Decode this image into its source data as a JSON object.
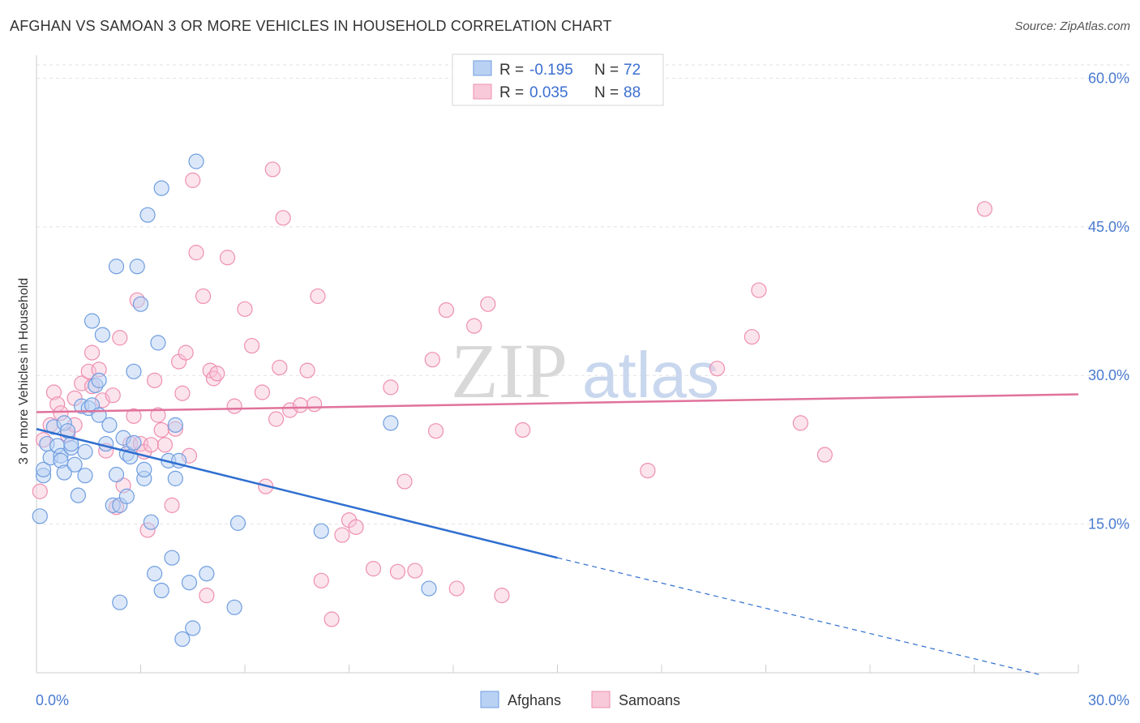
{
  "title": "AFGHAN VS SAMOAN 3 OR MORE VEHICLES IN HOUSEHOLD CORRELATION CHART",
  "source": "Source: ZipAtlas.com",
  "watermark": {
    "zip": "ZIP",
    "atlas": "atlas"
  },
  "legend": {
    "rows": [
      {
        "r_label": "R =",
        "r_value": "-0.195",
        "n_label": "N =",
        "n_value": "72"
      },
      {
        "r_label": "R =",
        "r_value": "0.035",
        "n_label": "N =",
        "n_value": "88"
      }
    ]
  },
  "bottom_legend": [
    "Afghans",
    "Samoans"
  ],
  "chart_data": {
    "type": "scatter",
    "title": "AFGHAN VS SAMOAN 3 OR MORE VEHICLES IN HOUSEHOLD CORRELATION CHART",
    "xlabel": "",
    "ylabel": "3 or more Vehicles in Household",
    "xlim": [
      0,
      30
    ],
    "ylim": [
      0,
      62
    ],
    "x_tick_labels": [
      "0.0%",
      "30.0%"
    ],
    "y_ticks": [
      15,
      30,
      45,
      60
    ],
    "y_tick_labels": [
      "15.0%",
      "30.0%",
      "45.0%",
      "60.0%"
    ],
    "grid": true,
    "colors": {
      "afghans": "#6f9de0",
      "samoans": "#ee8fb0",
      "afghan_line": "#2f6fd0",
      "samoan_line": "#e0729b"
    },
    "series": [
      {
        "name": "Afghans",
        "r": -0.195,
        "n": 72,
        "trend": {
          "x0": 0,
          "y0": 24.6,
          "x1": 15,
          "y1": 11.6,
          "dashed_to_x": 28.9,
          "dashed_to_y": -0.2
        },
        "points": [
          [
            0.1,
            15.8
          ],
          [
            0.2,
            19.9
          ],
          [
            0.2,
            20.5
          ],
          [
            0.3,
            23.1
          ],
          [
            0.4,
            21.7
          ],
          [
            0.5,
            24.8
          ],
          [
            0.6,
            22.9
          ],
          [
            0.7,
            21.9
          ],
          [
            0.7,
            21.4
          ],
          [
            0.8,
            20.2
          ],
          [
            0.8,
            25.2
          ],
          [
            0.9,
            24.4
          ],
          [
            1.0,
            22.7
          ],
          [
            1.0,
            23.1
          ],
          [
            1.1,
            21.0
          ],
          [
            1.2,
            17.9
          ],
          [
            1.3,
            26.9
          ],
          [
            1.4,
            22.3
          ],
          [
            1.4,
            19.9
          ],
          [
            1.5,
            26.7
          ],
          [
            1.6,
            35.5
          ],
          [
            1.6,
            27.0
          ],
          [
            1.7,
            29.0
          ],
          [
            1.8,
            29.5
          ],
          [
            1.8,
            26.0
          ],
          [
            1.9,
            34.1
          ],
          [
            2.0,
            23.1
          ],
          [
            2.1,
            25.0
          ],
          [
            2.2,
            16.9
          ],
          [
            2.3,
            41.0
          ],
          [
            2.3,
            20.0
          ],
          [
            2.4,
            16.9
          ],
          [
            2.4,
            7.1
          ],
          [
            2.5,
            23.7
          ],
          [
            2.6,
            17.8
          ],
          [
            2.6,
            22.1
          ],
          [
            2.7,
            21.8
          ],
          [
            2.8,
            23.2
          ],
          [
            2.8,
            30.4
          ],
          [
            2.9,
            41.0
          ],
          [
            3.0,
            37.2
          ],
          [
            3.1,
            19.6
          ],
          [
            3.1,
            20.5
          ],
          [
            3.2,
            46.2
          ],
          [
            3.3,
            15.2
          ],
          [
            3.4,
            10.0
          ],
          [
            3.5,
            33.3
          ],
          [
            3.6,
            48.9
          ],
          [
            3.6,
            8.3
          ],
          [
            3.8,
            21.4
          ],
          [
            3.9,
            11.6
          ],
          [
            4.0,
            19.6
          ],
          [
            4.0,
            25.0
          ],
          [
            4.1,
            21.4
          ],
          [
            4.2,
            3.4
          ],
          [
            4.4,
            9.1
          ],
          [
            4.5,
            4.5
          ],
          [
            4.6,
            51.6
          ],
          [
            4.9,
            10.0
          ],
          [
            5.7,
            6.6
          ],
          [
            5.8,
            15.1
          ],
          [
            8.2,
            14.3
          ],
          [
            10.2,
            25.2
          ],
          [
            11.3,
            8.5
          ]
        ]
      },
      {
        "name": "Samoans",
        "r": 0.035,
        "n": 88,
        "trend": {
          "x0": 0,
          "y0": 26.3,
          "x1": 30,
          "y1": 28.1
        },
        "points": [
          [
            0.1,
            18.3
          ],
          [
            0.2,
            23.5
          ],
          [
            0.4,
            25.0
          ],
          [
            0.5,
            28.3
          ],
          [
            0.6,
            27.1
          ],
          [
            0.7,
            26.2
          ],
          [
            0.9,
            24.0
          ],
          [
            1.1,
            25.0
          ],
          [
            1.1,
            27.7
          ],
          [
            1.3,
            29.2
          ],
          [
            1.5,
            30.4
          ],
          [
            1.6,
            32.3
          ],
          [
            1.6,
            28.9
          ],
          [
            1.8,
            30.6
          ],
          [
            1.9,
            27.5
          ],
          [
            2.0,
            22.4
          ],
          [
            2.2,
            28.0
          ],
          [
            2.3,
            16.7
          ],
          [
            2.4,
            33.8
          ],
          [
            2.5,
            18.9
          ],
          [
            2.7,
            23.1
          ],
          [
            2.8,
            25.9
          ],
          [
            2.9,
            37.6
          ],
          [
            3.0,
            23.1
          ],
          [
            3.1,
            22.3
          ],
          [
            3.2,
            14.4
          ],
          [
            3.3,
            23.0
          ],
          [
            3.4,
            29.5
          ],
          [
            3.5,
            26.0
          ],
          [
            3.6,
            24.5
          ],
          [
            3.7,
            23.0
          ],
          [
            3.9,
            16.9
          ],
          [
            4.0,
            24.6
          ],
          [
            4.1,
            31.4
          ],
          [
            4.2,
            28.2
          ],
          [
            4.3,
            32.3
          ],
          [
            4.4,
            21.9
          ],
          [
            4.5,
            49.7
          ],
          [
            4.6,
            42.4
          ],
          [
            4.8,
            38.0
          ],
          [
            4.9,
            7.8
          ],
          [
            5.0,
            30.5
          ],
          [
            5.1,
            29.7
          ],
          [
            5.2,
            30.2
          ],
          [
            5.5,
            41.9
          ],
          [
            5.7,
            26.9
          ],
          [
            6.0,
            36.7
          ],
          [
            6.2,
            33.0
          ],
          [
            6.5,
            28.3
          ],
          [
            6.6,
            18.8
          ],
          [
            6.8,
            50.8
          ],
          [
            6.9,
            25.6
          ],
          [
            7.0,
            30.8
          ],
          [
            7.1,
            45.9
          ],
          [
            7.3,
            26.5
          ],
          [
            7.6,
            27.0
          ],
          [
            7.8,
            30.5
          ],
          [
            8.0,
            27.1
          ],
          [
            8.1,
            38.0
          ],
          [
            8.2,
            9.3
          ],
          [
            8.5,
            5.4
          ],
          [
            8.8,
            13.9
          ],
          [
            9.0,
            15.4
          ],
          [
            9.2,
            14.7
          ],
          [
            9.7,
            10.5
          ],
          [
            10.2,
            28.8
          ],
          [
            10.4,
            10.2
          ],
          [
            10.6,
            19.3
          ],
          [
            10.9,
            10.3
          ],
          [
            11.4,
            31.6
          ],
          [
            11.5,
            24.4
          ],
          [
            11.8,
            36.6
          ],
          [
            12.1,
            8.5
          ],
          [
            12.6,
            35.0
          ],
          [
            13.0,
            37.2
          ],
          [
            13.4,
            7.8
          ],
          [
            14.0,
            24.5
          ],
          [
            17.6,
            20.4
          ],
          [
            19.6,
            30.7
          ],
          [
            20.6,
            33.9
          ],
          [
            20.8,
            38.6
          ],
          [
            22.0,
            25.2
          ],
          [
            22.7,
            22.0
          ],
          [
            27.3,
            46.8
          ]
        ]
      }
    ]
  }
}
